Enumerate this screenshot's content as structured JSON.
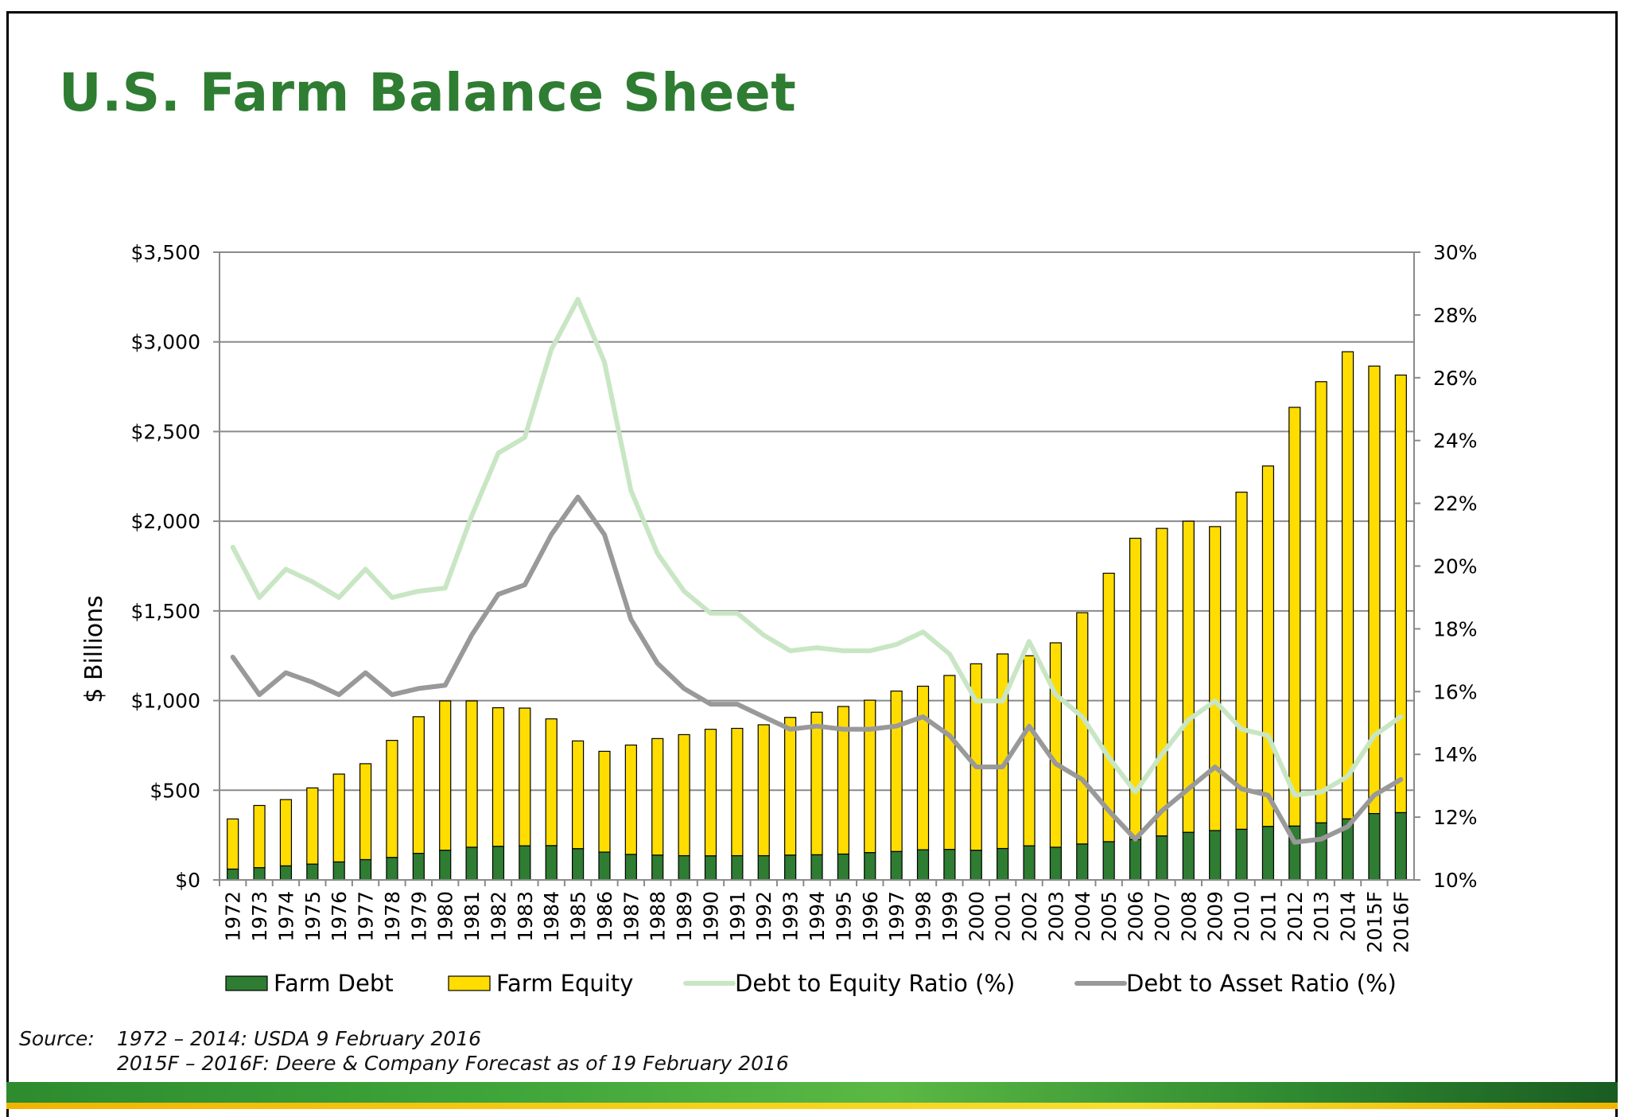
{
  "title": "U.S. Farm Balance Sheet",
  "source": {
    "label": "Source:",
    "line1": "1972 – 2014: USDA 9 February 2016",
    "line2": "2015F – 2016F: Deere & Company Forecast as of 19 February 2016"
  },
  "colors": {
    "title": "#2e7d32",
    "farm_debt": "#2e7d32",
    "farm_equity": "#ffdd00",
    "debt_to_equity": "#c8e6c3",
    "debt_to_asset": "#999999",
    "band_green": "#3ea53a",
    "band_yellow": "#f6d21a"
  },
  "chart_data": {
    "type": "bar",
    "stacked": true,
    "ylabel": "$ Billions",
    "y_ticks": [
      "$0",
      "$500",
      "$1,000",
      "$1,500",
      "$2,000",
      "$2,500",
      "$3,000",
      "$3,500"
    ],
    "ylim": [
      0,
      3500
    ],
    "y2_ticks": [
      "10%",
      "12%",
      "14%",
      "16%",
      "18%",
      "20%",
      "22%",
      "24%",
      "26%",
      "28%",
      "30%"
    ],
    "y2lim": [
      10,
      30
    ],
    "grid": true,
    "legend_position": "bottom",
    "categories": [
      "1972",
      "1973",
      "1974",
      "1975",
      "1976",
      "1977",
      "1978",
      "1979",
      "1980",
      "1981",
      "1982",
      "1983",
      "1984",
      "1985",
      "1986",
      "1987",
      "1988",
      "1989",
      "1990",
      "1991",
      "1992",
      "1993",
      "1994",
      "1995",
      "1996",
      "1997",
      "1998",
      "1999",
      "2000",
      "2001",
      "2002",
      "2003",
      "2004",
      "2005",
      "2006",
      "2007",
      "2008",
      "2009",
      "2010",
      "2011",
      "2012",
      "2013",
      "2014",
      "2015F",
      "2016F"
    ],
    "series": [
      {
        "name": "Farm Debt",
        "type": "bar",
        "axis": "left",
        "values": [
          60,
          68,
          78,
          88,
          100,
          113,
          125,
          148,
          165,
          182,
          187,
          190,
          191,
          174,
          155,
          142,
          138,
          135,
          134,
          135,
          135,
          138,
          140,
          144,
          152,
          158,
          168,
          170,
          165,
          175,
          190,
          182,
          200,
          213,
          225,
          245,
          265,
          275,
          282,
          298,
          300,
          318,
          340,
          370,
          375
        ]
      },
      {
        "name": "Farm Equity",
        "type": "bar",
        "axis": "left",
        "values": [
          280,
          347,
          370,
          425,
          490,
          535,
          653,
          762,
          833,
          816,
          773,
          768,
          707,
          601,
          562,
          610,
          650,
          675,
          706,
          710,
          730,
          768,
          795,
          823,
          850,
          895,
          912,
          970,
          1040,
          1085,
          1060,
          1140,
          1290,
          1497,
          1680,
          1715,
          1735,
          1695,
          1880,
          2010,
          2335,
          2460,
          2605,
          2495,
          2440
        ]
      },
      {
        "name": "Debt to Equity Ratio (%)",
        "type": "line",
        "axis": "right",
        "values": [
          20.6,
          19.0,
          19.9,
          19.5,
          19.0,
          19.9,
          19.0,
          19.2,
          19.3,
          21.6,
          23.6,
          24.1,
          26.9,
          28.5,
          26.5,
          22.4,
          20.4,
          19.2,
          18.5,
          18.5,
          17.8,
          17.3,
          17.4,
          17.3,
          17.3,
          17.5,
          17.9,
          17.2,
          15.7,
          15.7,
          17.6,
          15.9,
          15.2,
          13.9,
          12.8,
          14.0,
          15.1,
          15.7,
          14.8,
          14.6,
          12.7,
          12.8,
          13.3,
          14.6,
          15.2
        ]
      },
      {
        "name": "Debt to Asset Ratio (%)",
        "type": "line",
        "axis": "right",
        "values": [
          17.1,
          15.9,
          16.6,
          16.3,
          15.9,
          16.6,
          15.9,
          16.1,
          16.2,
          17.8,
          19.1,
          19.4,
          21.0,
          22.2,
          21.0,
          18.3,
          16.9,
          16.1,
          15.6,
          15.6,
          15.2,
          14.8,
          14.9,
          14.8,
          14.8,
          14.9,
          15.2,
          14.6,
          13.6,
          13.6,
          14.9,
          13.7,
          13.2,
          12.2,
          11.3,
          12.2,
          12.9,
          13.6,
          12.9,
          12.7,
          11.2,
          11.3,
          11.7,
          12.7,
          13.2
        ]
      }
    ]
  }
}
